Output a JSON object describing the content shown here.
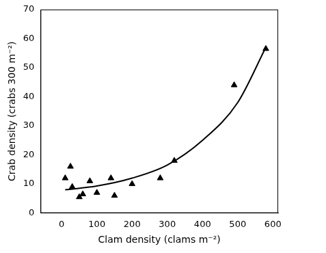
{
  "chart_data": {
    "type": "scatter",
    "x_label": "Clam density (clams m⁻²)",
    "y_label": "Crab density (crabs 300 m⁻²)",
    "xlim": [
      -60,
      615
    ],
    "xticks": [
      0,
      100,
      200,
      300,
      400,
      500,
      600
    ],
    "ylim": [
      0,
      70
    ],
    "yticks": [
      0,
      10,
      20,
      30,
      40,
      50,
      60,
      70
    ],
    "grid": false,
    "series": [
      {
        "type": "scatter",
        "marker": "triangle",
        "color": "#000000",
        "x": [
          10,
          25,
          30,
          50,
          60,
          80,
          100,
          140,
          150,
          200,
          280,
          320,
          490,
          580
        ],
        "values": [
          12,
          16,
          9,
          5.5,
          6.5,
          11,
          7,
          12,
          6,
          10,
          12,
          18,
          44,
          56.5
        ]
      },
      {
        "type": "line",
        "line_style": "solid",
        "color": "#000000",
        "x": [
          10,
          100,
          200,
          300,
          400,
          500,
          580
        ],
        "values": [
          8,
          9.3,
          12,
          16.5,
          25,
          38,
          57
        ]
      }
    ]
  }
}
